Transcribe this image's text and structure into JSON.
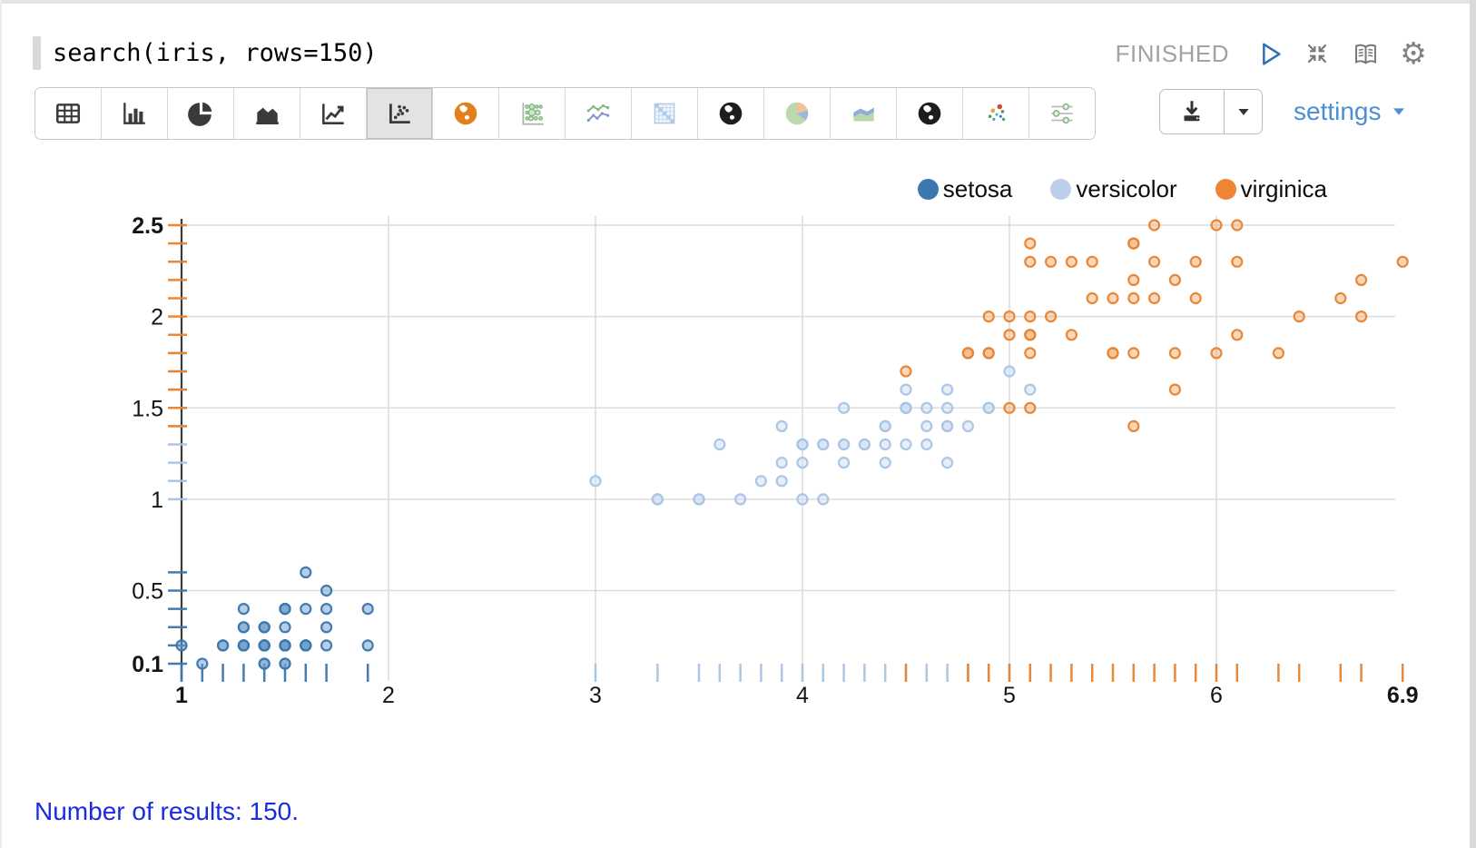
{
  "query": {
    "text": "search(iris, rows=150)"
  },
  "header": {
    "status": "FINISHED",
    "icons": [
      "run-icon",
      "collapse-icon",
      "docs-book-icon",
      "settings-gear-icon"
    ]
  },
  "toolbar": {
    "buttons": [
      {
        "id": "table",
        "icon": "table-icon",
        "selected": false
      },
      {
        "id": "bar-chart",
        "icon": "bar-chart-icon",
        "selected": false
      },
      {
        "id": "pie-chart",
        "icon": "pie-chart-icon",
        "selected": false
      },
      {
        "id": "area-chart",
        "icon": "area-chart-icon",
        "selected": false
      },
      {
        "id": "line-chart",
        "icon": "line-chart-icon",
        "selected": false
      },
      {
        "id": "scatter-plot",
        "icon": "scatter-plot-icon",
        "selected": true
      },
      {
        "id": "map-orange",
        "icon": "globe-orange-icon",
        "selected": false
      },
      {
        "id": "bubble-matrix",
        "icon": "bubble-matrix-icon",
        "selected": false
      },
      {
        "id": "multi-line",
        "icon": "multi-line-icon",
        "selected": false
      },
      {
        "id": "heatmap",
        "icon": "heatmap-icon",
        "selected": false
      },
      {
        "id": "map-dark-1",
        "icon": "globe-dark-icon",
        "selected": false
      },
      {
        "id": "pie-colored",
        "icon": "pie-colored-icon",
        "selected": false
      },
      {
        "id": "area-colored",
        "icon": "area-colored-icon",
        "selected": false
      },
      {
        "id": "map-dark-2",
        "icon": "globe-dark-icon",
        "selected": false
      },
      {
        "id": "scatter-colored",
        "icon": "scatter-colored-icon",
        "selected": false
      },
      {
        "id": "facet-settings",
        "icon": "facet-settings-icon",
        "selected": false
      }
    ],
    "download_icons": [
      "download-icon",
      "caret-down-icon"
    ],
    "settings_label": "settings"
  },
  "results": {
    "text": "Number of results: 150."
  },
  "colors": {
    "settings_link": "#4a8fd4",
    "status_text": "#a2a2a2",
    "results_text": "#1b2be0",
    "grid": "#dcdcdc",
    "axis": "#3a3a3a"
  },
  "chart_data": {
    "type": "scatter",
    "title": "",
    "xlabel": "",
    "ylabel": "",
    "xlim": [
      1,
      6.9
    ],
    "ylim": [
      0.1,
      2.5
    ],
    "grid": true,
    "rug_ticks": true,
    "legend_position": "top-right",
    "x_ticks": [
      {
        "v": 1,
        "label": "1",
        "bold": true
      },
      {
        "v": 2,
        "label": "2",
        "bold": false
      },
      {
        "v": 3,
        "label": "3",
        "bold": false
      },
      {
        "v": 4,
        "label": "4",
        "bold": false
      },
      {
        "v": 5,
        "label": "5",
        "bold": false
      },
      {
        "v": 6,
        "label": "6",
        "bold": false
      },
      {
        "v": 6.9,
        "label": "6.9",
        "bold": true
      }
    ],
    "y_ticks": [
      {
        "v": 0.1,
        "label": "0.1",
        "bold": true
      },
      {
        "v": 0.5,
        "label": "0.5",
        "bold": false
      },
      {
        "v": 1,
        "label": "1",
        "bold": false
      },
      {
        "v": 1.5,
        "label": "1.5",
        "bold": false
      },
      {
        "v": 2,
        "label": "2",
        "bold": false
      },
      {
        "v": 2.5,
        "label": "2.5",
        "bold": true
      }
    ],
    "x_gridlines": [
      2,
      3,
      4,
      5,
      6
    ],
    "y_gridlines": [
      0.5,
      1,
      1.5,
      2,
      2.5
    ],
    "series": [
      {
        "name": "setosa",
        "color": "#3a76af",
        "fill": "#6f9ec9",
        "legend_color": "#3c77b0",
        "points": [
          [
            1.4,
            0.2
          ],
          [
            1.4,
            0.2
          ],
          [
            1.3,
            0.2
          ],
          [
            1.5,
            0.2
          ],
          [
            1.4,
            0.2
          ],
          [
            1.7,
            0.4
          ],
          [
            1.4,
            0.3
          ],
          [
            1.5,
            0.2
          ],
          [
            1.4,
            0.2
          ],
          [
            1.5,
            0.1
          ],
          [
            1.5,
            0.2
          ],
          [
            1.6,
            0.2
          ],
          [
            1.4,
            0.1
          ],
          [
            1.1,
            0.1
          ],
          [
            1.2,
            0.2
          ],
          [
            1.5,
            0.4
          ],
          [
            1.3,
            0.4
          ],
          [
            1.4,
            0.3
          ],
          [
            1.7,
            0.3
          ],
          [
            1.5,
            0.3
          ],
          [
            1.7,
            0.2
          ],
          [
            1.5,
            0.4
          ],
          [
            1.0,
            0.2
          ],
          [
            1.7,
            0.5
          ],
          [
            1.9,
            0.2
          ],
          [
            1.6,
            0.2
          ],
          [
            1.6,
            0.4
          ],
          [
            1.5,
            0.2
          ],
          [
            1.4,
            0.2
          ],
          [
            1.6,
            0.2
          ],
          [
            1.6,
            0.2
          ],
          [
            1.5,
            0.4
          ],
          [
            1.5,
            0.1
          ],
          [
            1.4,
            0.2
          ],
          [
            1.5,
            0.2
          ],
          [
            1.2,
            0.2
          ],
          [
            1.3,
            0.2
          ],
          [
            1.4,
            0.1
          ],
          [
            1.3,
            0.2
          ],
          [
            1.5,
            0.2
          ],
          [
            1.3,
            0.3
          ],
          [
            1.3,
            0.3
          ],
          [
            1.3,
            0.2
          ],
          [
            1.6,
            0.6
          ],
          [
            1.9,
            0.4
          ],
          [
            1.4,
            0.3
          ],
          [
            1.6,
            0.2
          ],
          [
            1.4,
            0.2
          ],
          [
            1.5,
            0.2
          ],
          [
            1.4,
            0.2
          ]
        ]
      },
      {
        "name": "versicolor",
        "color": "#a8c3e5",
        "fill": "#cfdef1",
        "legend_color": "#bccfea",
        "points": [
          [
            4.7,
            1.4
          ],
          [
            4.5,
            1.5
          ],
          [
            4.9,
            1.5
          ],
          [
            4.0,
            1.3
          ],
          [
            4.6,
            1.5
          ],
          [
            4.5,
            1.3
          ],
          [
            4.7,
            1.6
          ],
          [
            3.3,
            1.0
          ],
          [
            4.6,
            1.3
          ],
          [
            3.9,
            1.4
          ],
          [
            3.5,
            1.0
          ],
          [
            4.2,
            1.5
          ],
          [
            4.0,
            1.0
          ],
          [
            4.7,
            1.4
          ],
          [
            3.6,
            1.3
          ],
          [
            4.4,
            1.4
          ],
          [
            4.5,
            1.5
          ],
          [
            4.1,
            1.0
          ],
          [
            4.5,
            1.5
          ],
          [
            3.9,
            1.1
          ],
          [
            4.8,
            1.8
          ],
          [
            4.0,
            1.3
          ],
          [
            4.9,
            1.5
          ],
          [
            4.7,
            1.2
          ],
          [
            4.3,
            1.3
          ],
          [
            4.4,
            1.4
          ],
          [
            4.8,
            1.4
          ],
          [
            5.0,
            1.7
          ],
          [
            4.5,
            1.5
          ],
          [
            3.5,
            1.0
          ],
          [
            3.8,
            1.1
          ],
          [
            3.7,
            1.0
          ],
          [
            3.9,
            1.2
          ],
          [
            5.1,
            1.6
          ],
          [
            4.5,
            1.5
          ],
          [
            4.5,
            1.6
          ],
          [
            4.7,
            1.5
          ],
          [
            4.4,
            1.3
          ],
          [
            4.1,
            1.3
          ],
          [
            4.0,
            1.3
          ],
          [
            4.4,
            1.2
          ],
          [
            4.6,
            1.4
          ],
          [
            4.0,
            1.2
          ],
          [
            3.3,
            1.0
          ],
          [
            4.2,
            1.3
          ],
          [
            4.2,
            1.2
          ],
          [
            4.2,
            1.3
          ],
          [
            4.3,
            1.3
          ],
          [
            3.0,
            1.1
          ],
          [
            4.1,
            1.3
          ]
        ]
      },
      {
        "name": "virginica",
        "color": "#e8822e",
        "fill": "#f3b077",
        "legend_color": "#ee8434",
        "points": [
          [
            6.0,
            2.5
          ],
          [
            5.1,
            1.9
          ],
          [
            5.9,
            2.1
          ],
          [
            5.6,
            1.8
          ],
          [
            5.8,
            2.2
          ],
          [
            6.6,
            2.1
          ],
          [
            4.5,
            1.7
          ],
          [
            6.3,
            1.8
          ],
          [
            5.8,
            1.8
          ],
          [
            6.1,
            2.5
          ],
          [
            5.1,
            2.0
          ],
          [
            5.3,
            1.9
          ],
          [
            5.5,
            2.1
          ],
          [
            5.0,
            2.0
          ],
          [
            5.1,
            2.4
          ],
          [
            5.3,
            2.3
          ],
          [
            5.5,
            1.8
          ],
          [
            6.7,
            2.2
          ],
          [
            6.9,
            2.3
          ],
          [
            5.0,
            1.5
          ],
          [
            5.7,
            2.3
          ],
          [
            4.9,
            2.0
          ],
          [
            6.7,
            2.0
          ],
          [
            4.9,
            1.8
          ],
          [
            5.7,
            2.1
          ],
          [
            6.0,
            1.8
          ],
          [
            4.8,
            1.8
          ],
          [
            4.9,
            1.8
          ],
          [
            5.6,
            2.1
          ],
          [
            5.8,
            1.6
          ],
          [
            6.1,
            1.9
          ],
          [
            6.4,
            2.0
          ],
          [
            5.6,
            2.2
          ],
          [
            5.1,
            1.5
          ],
          [
            5.6,
            1.4
          ],
          [
            6.1,
            2.3
          ],
          [
            5.6,
            2.4
          ],
          [
            5.5,
            1.8
          ],
          [
            4.8,
            1.8
          ],
          [
            5.4,
            2.1
          ],
          [
            5.6,
            2.4
          ],
          [
            5.1,
            2.3
          ],
          [
            5.1,
            1.9
          ],
          [
            5.9,
            2.3
          ],
          [
            5.7,
            2.5
          ],
          [
            5.2,
            2.3
          ],
          [
            5.0,
            1.9
          ],
          [
            5.2,
            2.0
          ],
          [
            5.4,
            2.3
          ],
          [
            5.1,
            1.8
          ]
        ]
      }
    ]
  }
}
